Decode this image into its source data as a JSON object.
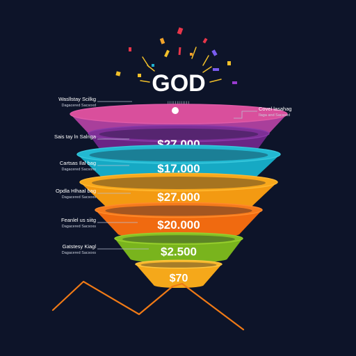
{
  "title": "GOD",
  "subtitle": "IIIIIIIIIIII",
  "stages": [
    {
      "value_label": "",
      "color": "#a93f9b",
      "rim": "#e05aa8",
      "top": "#d94f9c"
    },
    {
      "value_label": "$27.000",
      "color": "#6a2585",
      "rim": "#8a3aa8",
      "top": "#7d2f97"
    },
    {
      "value_label": "$17.000",
      "color": "#16a9c4",
      "rim": "#37c7dc",
      "top": "#22b9d2"
    },
    {
      "value_label": "$27.000",
      "color": "#f39a12",
      "rim": "#ffb830",
      "top": "#f8a81c"
    },
    {
      "value_label": "$20.000",
      "color": "#f06a10",
      "rim": "#ff8a2a",
      "top": "#f57a1c"
    },
    {
      "value_label": "$2.500",
      "color": "#79b41d",
      "rim": "#98cf2e",
      "top": "#86c024"
    },
    {
      "value_label": "$70",
      "color": "#f5a81a",
      "rim": "#ffc640",
      "top": "#f8b62a"
    }
  ],
  "labels_left": [
    {
      "title": "Wasllstay Scilkg",
      "sub": "Dagacered Sacsoxd"
    },
    {
      "title": "Sais tay ln Salnga",
      "sub": ""
    },
    {
      "title": "Cartsas Ilal bag",
      "sub": "Dagacered Sacsons"
    },
    {
      "title": "Opdla Hlhaal bag",
      "sub": "Dagacered Sacsoxs"
    },
    {
      "title": "Feanlel us siitg",
      "sub": "Dagacered Sacsoxs"
    },
    {
      "title": "Gatstesy Kiagl",
      "sub": "Dagacered Sacsoxs"
    }
  ],
  "label_right": {
    "title": "Covel lasahag",
    "sub": "Ilaga and Sacsoxd"
  }
}
